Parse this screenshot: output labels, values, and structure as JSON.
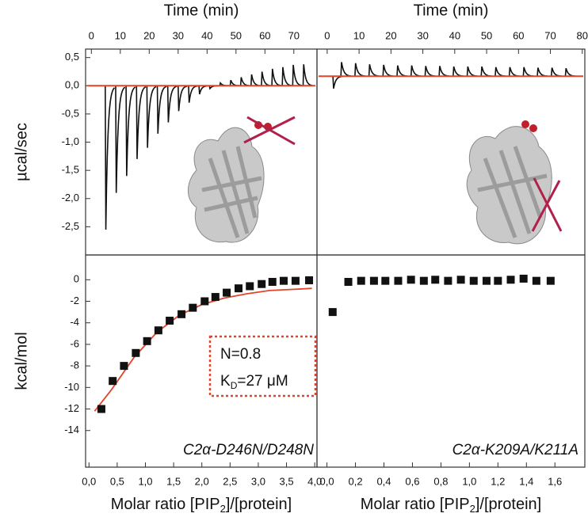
{
  "chart_data": [
    {
      "type": "itc",
      "x_label": "Time (min)",
      "y_label": "µcal/sec",
      "xlim": [
        -2,
        78
      ],
      "xticks": [
        0,
        10,
        20,
        30,
        40,
        50,
        60,
        70
      ],
      "ylim": [
        -3.0,
        0.65
      ],
      "yticks": [
        {
          "value": 0.5,
          "label": "0,5"
        },
        {
          "value": 0,
          "label": "0,0"
        },
        {
          "value": -0.5,
          "label": "-0,5"
        },
        {
          "value": -1,
          "label": "-1,0"
        },
        {
          "value": -1.5,
          "label": "-1,5"
        },
        {
          "value": -2,
          "label": "-2,0"
        },
        {
          "value": -2.5,
          "label": "-2,5"
        }
      ],
      "baseline": 0.0,
      "color": "#111111",
      "fit_color": "#e0452b",
      "x": [
        5,
        8.6,
        12.2,
        15.8,
        19.4,
        23,
        26.6,
        30.2,
        33.8,
        37.4,
        41,
        44.6,
        48.2,
        51.8,
        55.4,
        59,
        62.6,
        66.2,
        69.8,
        73.4
      ],
      "values": [
        -2.55,
        -1.9,
        -1.6,
        -1.3,
        -1.1,
        -0.85,
        -0.65,
        -0.45,
        -0.3,
        -0.15,
        -0.05,
        0.05,
        0.1,
        0.15,
        0.2,
        0.25,
        0.3,
        0.33,
        0.37,
        0.38
      ]
    },
    {
      "type": "itc",
      "x_label": "Time (min)",
      "xlim": [
        -3.2,
        80.8
      ],
      "xticks": [
        0,
        10,
        20,
        30,
        40,
        50,
        60,
        70,
        80
      ],
      "ylim": [
        -3.0,
        0.65
      ],
      "baseline": 0.17,
      "color": "#111111",
      "fit_color": "#e0452b",
      "x": [
        2,
        4.5,
        8.9,
        13.3,
        17.7,
        22.1,
        26.5,
        30.9,
        35.3,
        39.7,
        44.1,
        48.5,
        52.9,
        57.3,
        61.7,
        66.1,
        70.5,
        74.9
      ],
      "values": [
        -0.05,
        0.42,
        0.4,
        0.38,
        0.37,
        0.36,
        0.36,
        0.35,
        0.35,
        0.34,
        0.34,
        0.34,
        0.33,
        0.33,
        0.33,
        0.32,
        0.32,
        0.31
      ]
    },
    {
      "type": "scatter",
      "x_label": [
        "Molar ratio [PIP",
        "2",
        "]/[protein]"
      ],
      "y_label": "kcal/mol",
      "xlim": [
        -0.06,
        4.04
      ],
      "xticks": [
        {
          "value": 0,
          "label": "0,0"
        },
        {
          "value": 0.5,
          "label": "0,5"
        },
        {
          "value": 1,
          "label": "1,0"
        },
        {
          "value": 1.5,
          "label": "1,5"
        },
        {
          "value": 2,
          "label": "2,0"
        },
        {
          "value": 2.5,
          "label": "2,5"
        },
        {
          "value": 3,
          "label": "3,0"
        },
        {
          "value": 3.5,
          "label": "3,5"
        },
        {
          "value": 4,
          "label": "4,0"
        }
      ],
      "ylim": [
        -17.4,
        2.3
      ],
      "yticks": [
        0,
        -2,
        -4,
        -6,
        -8,
        -10,
        -12,
        -14
      ],
      "color": "#111111",
      "x": [
        0.22,
        0.42,
        0.62,
        0.83,
        1.03,
        1.23,
        1.43,
        1.64,
        1.84,
        2.05,
        2.24,
        2.44,
        2.65,
        2.85,
        3.06,
        3.25,
        3.45,
        3.66,
        3.9
      ],
      "values": [
        -12.0,
        -9.4,
        -8.0,
        -6.8,
        -5.7,
        -4.7,
        -3.8,
        -3.2,
        -2.6,
        -2.0,
        -1.6,
        -1.2,
        -0.8,
        -0.6,
        -0.4,
        -0.2,
        -0.1,
        -0.1,
        -0.05
      ],
      "fit": {
        "color": "#e0452b",
        "x": [
          0.1,
          0.4,
          0.8,
          1.2,
          1.6,
          2.0,
          2.4,
          2.8,
          3.2,
          3.6,
          3.95
        ],
        "values": [
          -12.2,
          -10.2,
          -7.2,
          -4.9,
          -3.3,
          -2.3,
          -1.7,
          -1.3,
          -1.0,
          -0.9,
          -0.8
        ]
      },
      "label": "C2α-D246N/D248N",
      "fit_n": "N=0.8",
      "fit_kd": [
        "K",
        "D",
        "=27 μM"
      ]
    },
    {
      "type": "scatter",
      "x_label": [
        "Molar ratio [PIP",
        "2",
        "]/[protein]"
      ],
      "xlim": [
        -0.07,
        1.81
      ],
      "xticks": [
        {
          "value": 0,
          "label": "0,0"
        },
        {
          "value": 0.2,
          "label": "0,2"
        },
        {
          "value": 0.4,
          "label": "0,4"
        },
        {
          "value": 0.6,
          "label": "0,6"
        },
        {
          "value": 0.8,
          "label": "0,8"
        },
        {
          "value": 1,
          "label": "1,0"
        },
        {
          "value": 1.2,
          "label": "1,2"
        },
        {
          "value": 1.4,
          "label": "1,4"
        },
        {
          "value": 1.6,
          "label": "1,6"
        }
      ],
      "ylim": [
        -17.4,
        2.3
      ],
      "color": "#111111",
      "x": [
        0.04,
        0.15,
        0.24,
        0.33,
        0.41,
        0.5,
        0.59,
        0.68,
        0.76,
        0.85,
        0.94,
        1.03,
        1.12,
        1.2,
        1.29,
        1.38,
        1.47,
        1.57
      ],
      "values": [
        -3.0,
        -0.2,
        -0.1,
        -0.1,
        -0.1,
        -0.1,
        0,
        -0.1,
        0,
        -0.1,
        0,
        -0.1,
        -0.1,
        -0.1,
        0,
        0.1,
        -0.1,
        -0.1
      ],
      "label": "C2α-K209A/K211A"
    }
  ]
}
